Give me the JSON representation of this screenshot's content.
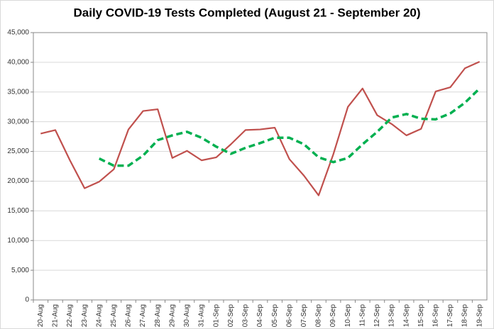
{
  "chart_data": {
    "type": "line",
    "title": "Daily COVID-19 Tests Completed (August 21 - September 20)",
    "categories": [
      "20-Aug",
      "21-Aug",
      "22-Aug",
      "23-Aug",
      "24-Aug",
      "25-Aug",
      "26-Aug",
      "27-Aug",
      "28-Aug",
      "29-Aug",
      "30-Aug",
      "31-Aug",
      "01-Sep",
      "02-Sep",
      "03-Sep",
      "04-Sep",
      "05-Sep",
      "06-Sep",
      "07-Sep",
      "08-Sep",
      "09-Sep",
      "10-Sep",
      "11-Sep",
      "12-Sep",
      "13-Sep",
      "14-Sep",
      "15-Sep",
      "16-Sep",
      "17-Sep",
      "18-Sep",
      "19-Sep"
    ],
    "series": [
      {
        "color": "#c0504d",
        "dashed": false,
        "values": [
          28000,
          28600,
          23500,
          18800,
          19900,
          22000,
          28700,
          31800,
          32100,
          23900,
          25100,
          23500,
          24000,
          26200,
          28600,
          28700,
          29000,
          23700,
          20900,
          17600,
          24500,
          32500,
          35600,
          31100,
          29600,
          27700,
          28800,
          35100,
          35800,
          39000,
          40100
        ]
      },
      {
        "color": "#00b050",
        "dashed": true,
        "values": [
          null,
          null,
          null,
          null,
          23800,
          22600,
          22600,
          24300,
          26900,
          27700,
          28300,
          27300,
          25800,
          24600,
          25600,
          26400,
          27300,
          27300,
          26200,
          24000,
          23200,
          23900,
          26200,
          28300,
          30700,
          31300,
          30500,
          30400,
          31400,
          33200,
          35600
        ]
      }
    ],
    "ylim": [
      0,
      45000
    ],
    "yticks": [
      0,
      {
        "value": 5000,
        "label": "5,000"
      },
      {
        "value": 10000,
        "label": "10,000"
      },
      {
        "value": 15000,
        "label": "15,000"
      },
      {
        "value": 20000,
        "label": "20,000"
      },
      {
        "value": 25000,
        "label": "25,000"
      },
      {
        "value": 30000,
        "label": "30,000"
      },
      {
        "value": 35000,
        "label": "35,000"
      },
      {
        "value": 40000,
        "label": "40,000"
      },
      {
        "value": 45000,
        "label": "45,000"
      }
    ],
    "grid": true
  }
}
